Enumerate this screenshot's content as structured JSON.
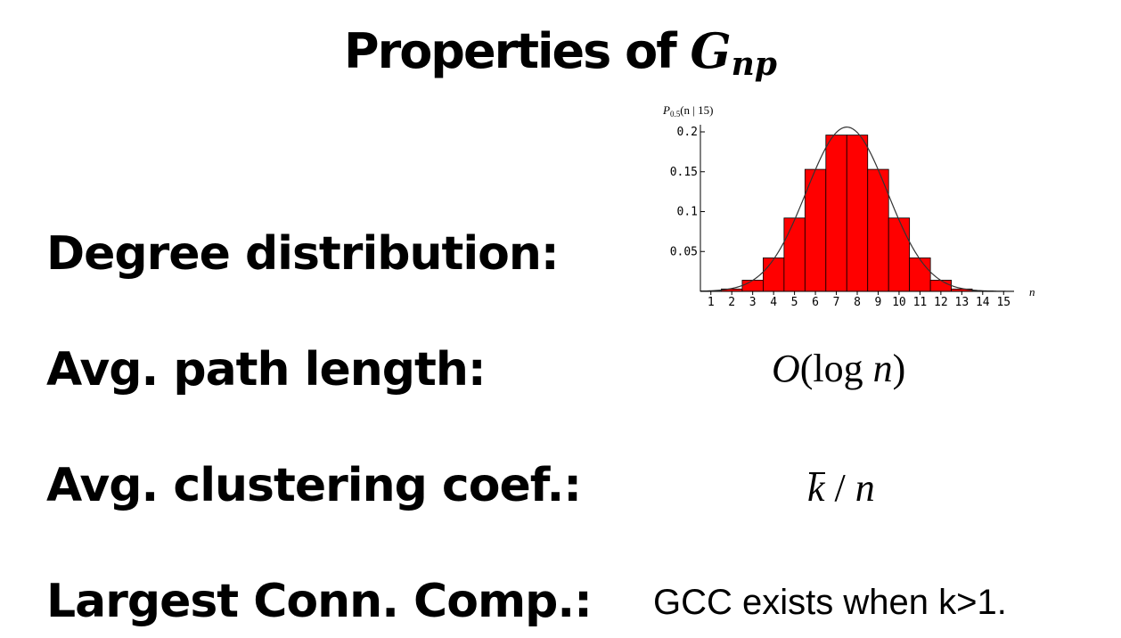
{
  "title": {
    "text": "Properties of ",
    "symbol": "G",
    "subscript": "np"
  },
  "rows": {
    "degree": {
      "label": "Degree distribution:"
    },
    "path": {
      "label": "Avg. path length:",
      "value_prefix": "O",
      "value_open": "(log ",
      "value_var": "n",
      "value_close": ")"
    },
    "clustering": {
      "label": "Avg. clustering coef.:",
      "value_k": "k",
      "value_sep": " / ",
      "value_n": "n"
    },
    "lcc": {
      "label": "Largest Conn. Comp.:",
      "value": "GCC exists when k>1."
    }
  },
  "chart_data": {
    "type": "bar",
    "title": "P0.5(n | 15)",
    "title_main": "P",
    "title_sub": "0.5",
    "title_rest": "(n | 15)",
    "xlabel": "n",
    "ylabel": "",
    "categories": [
      "1",
      "2",
      "3",
      "4",
      "5",
      "6",
      "7",
      "8",
      "9",
      "10",
      "11",
      "12",
      "13",
      "14",
      "15"
    ],
    "values": [
      0.0005,
      0.003,
      0.014,
      0.042,
      0.092,
      0.153,
      0.196,
      0.196,
      0.153,
      0.092,
      0.042,
      0.014,
      0.003,
      0.0005,
      0.0
    ],
    "y_ticks": [
      0.05,
      0.1,
      0.15,
      0.2
    ],
    "y_tick_labels": [
      "0.05",
      "0.1",
      "0.15",
      "0.2"
    ],
    "ylim": [
      0,
      0.2
    ],
    "curve": "normal approximation overlay",
    "bar_color": "#ff0000",
    "grid": false
  }
}
